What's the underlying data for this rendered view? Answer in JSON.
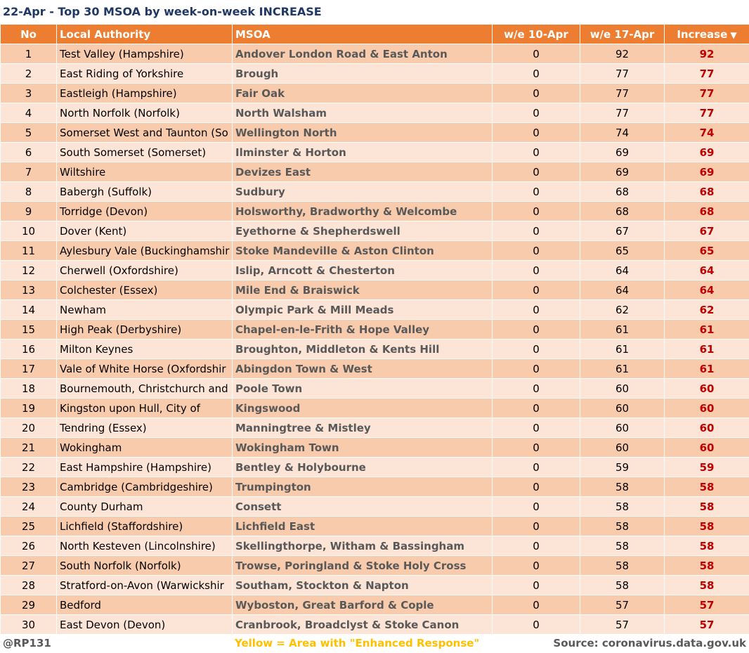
{
  "title": "22-Apr - Top 30 MSOA by week-on-week INCREASE",
  "table": {
    "headers": [
      "No",
      "Local Authority",
      "MSOA",
      "w/e 10-Apr",
      "w/e 17-Apr",
      "Increase"
    ],
    "rows": [
      [
        1,
        "Test Valley (Hampshire)",
        "Andover London Road & East Anton",
        0,
        92,
        92
      ],
      [
        2,
        "East Riding of Yorkshire",
        "Brough",
        0,
        77,
        77
      ],
      [
        3,
        "Eastleigh (Hampshire)",
        "Fair Oak",
        0,
        77,
        77
      ],
      [
        4,
        "North Norfolk (Norfolk)",
        "North Walsham",
        0,
        77,
        77
      ],
      [
        5,
        "Somerset West and Taunton (So",
        "Wellington North",
        0,
        74,
        74
      ],
      [
        6,
        "South Somerset (Somerset)",
        "Ilminster & Horton",
        0,
        69,
        69
      ],
      [
        7,
        "Wiltshire",
        "Devizes East",
        0,
        69,
        69
      ],
      [
        8,
        "Babergh (Suffolk)",
        "Sudbury",
        0,
        68,
        68
      ],
      [
        9,
        "Torridge (Devon)",
        "Holsworthy, Bradworthy & Welcombe",
        0,
        68,
        68
      ],
      [
        10,
        "Dover (Kent)",
        "Eyethorne & Shepherdswell",
        0,
        67,
        67
      ],
      [
        11,
        "Aylesbury Vale (Buckinghamshir",
        "Stoke Mandeville & Aston Clinton",
        0,
        65,
        65
      ],
      [
        12,
        "Cherwell (Oxfordshire)",
        "Islip, Arncott & Chesterton",
        0,
        64,
        64
      ],
      [
        13,
        "Colchester (Essex)",
        "Mile End & Braiswick",
        0,
        64,
        64
      ],
      [
        14,
        "Newham",
        "Olympic Park & Mill Meads",
        0,
        62,
        62
      ],
      [
        15,
        "High Peak (Derbyshire)",
        "Chapel-en-le-Frith & Hope Valley",
        0,
        61,
        61
      ],
      [
        16,
        "Milton Keynes",
        "Broughton, Middleton & Kents Hill",
        0,
        61,
        61
      ],
      [
        17,
        "Vale of White Horse (Oxfordshir",
        "Abingdon Town & West",
        0,
        61,
        61
      ],
      [
        18,
        "Bournemouth, Christchurch and",
        "Poole Town",
        0,
        60,
        60
      ],
      [
        19,
        "Kingston upon Hull, City of",
        "Kingswood",
        0,
        60,
        60
      ],
      [
        20,
        "Tendring (Essex)",
        "Manningtree & Mistley",
        0,
        60,
        60
      ],
      [
        21,
        "Wokingham",
        "Wokingham Town",
        0,
        60,
        60
      ],
      [
        22,
        "East Hampshire (Hampshire)",
        "Bentley & Holybourne",
        0,
        59,
        59
      ],
      [
        23,
        "Cambridge (Cambridgeshire)",
        "Trumpington",
        0,
        58,
        58
      ],
      [
        24,
        "County Durham",
        "Consett",
        0,
        58,
        58
      ],
      [
        25,
        "Lichfield (Staffordshire)",
        "Lichfield East",
        0,
        58,
        58
      ],
      [
        26,
        "North Kesteven (Lincolnshire)",
        "Skellingthorpe, Witham & Bassingham",
        0,
        58,
        58
      ],
      [
        27,
        "South Norfolk (Norfolk)",
        "Trowse, Poringland & Stoke Holy Cross",
        0,
        58,
        58
      ],
      [
        28,
        "Stratford-on-Avon (Warwickshir",
        "Southam, Stockton & Napton",
        0,
        58,
        58
      ],
      [
        29,
        "Bedford",
        "Wyboston, Great Barford & Cople",
        0,
        57,
        57
      ],
      [
        30,
        "East Devon (Devon)",
        "Cranbrook, Broadclyst & Stoke Canon",
        0,
        57,
        57
      ]
    ]
  },
  "footer": {
    "handle": "@RP131",
    "note": "Yellow = Area with \"Enhanced Response\"",
    "source": "Source: coronavirus.data.gov.uk"
  }
}
